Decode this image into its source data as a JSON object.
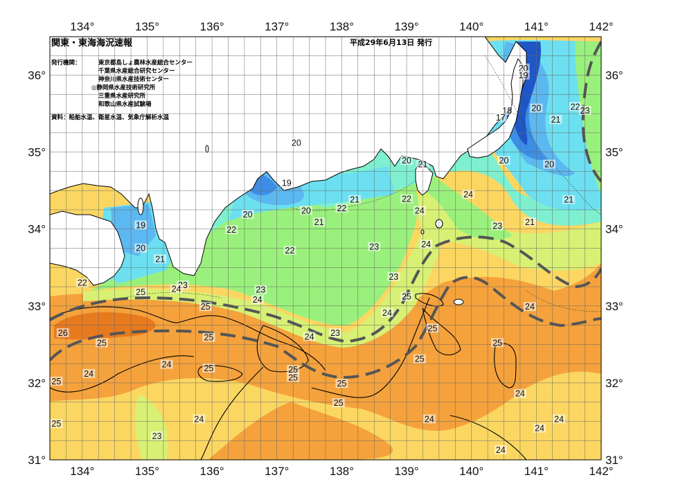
{
  "header": {
    "title": "関東・東海海況速報",
    "date": "平成29年6月13日 発行"
  },
  "issuers": {
    "label": "発行機関：",
    "items": [
      "東京都島しょ農林水産総合センター",
      "千葉県水産総合研究センター",
      "神奈川県水産技術センター",
      "◎静岡県水産技術研究所",
      "三重県水産研究所",
      "和歌山県水産試験場"
    ]
  },
  "sources": "資料：船舶水温、衛星水温、気象庁解析水温",
  "axes": {
    "lon_ticks": [
      "134°",
      "135°",
      "136°",
      "137°",
      "138°",
      "139°",
      "140°",
      "141°",
      "142°"
    ],
    "lat_ticks": [
      "36°",
      "35°",
      "34°",
      "33°",
      "32°",
      "31°"
    ],
    "lon_range": [
      133.5,
      142
    ],
    "lat_range": [
      31,
      36.5
    ]
  },
  "temperature_labels": [
    {
      "text": "20",
      "lon": 140.8,
      "lat": 36.07
    },
    {
      "text": "19",
      "lon": 140.8,
      "lat": 35.98
    },
    {
      "text": "18",
      "lon": 140.55,
      "lat": 35.52
    },
    {
      "text": "17",
      "lon": 140.45,
      "lat": 35.43
    },
    {
      "text": "20",
      "lon": 141.0,
      "lat": 35.55
    },
    {
      "text": "22",
      "lon": 141.6,
      "lat": 35.57
    },
    {
      "text": "23",
      "lon": 141.75,
      "lat": 35.52
    },
    {
      "text": "21",
      "lon": 141.3,
      "lat": 35.4
    },
    {
      "text": "20",
      "lon": 137.3,
      "lat": 35.1
    },
    {
      "text": "20",
      "lon": 139.0,
      "lat": 34.87
    },
    {
      "text": "21",
      "lon": 139.25,
      "lat": 34.82
    },
    {
      "text": "20",
      "lon": 140.5,
      "lat": 34.87
    },
    {
      "text": "20",
      "lon": 141.2,
      "lat": 34.82
    },
    {
      "text": "19",
      "lon": 137.15,
      "lat": 34.58
    },
    {
      "text": "24",
      "lon": 139.95,
      "lat": 34.43
    },
    {
      "text": "21",
      "lon": 138.2,
      "lat": 34.36
    },
    {
      "text": "22",
      "lon": 138.0,
      "lat": 34.25
    },
    {
      "text": "22",
      "lon": 139.0,
      "lat": 34.37
    },
    {
      "text": "24",
      "lon": 139.2,
      "lat": 34.22
    },
    {
      "text": "21",
      "lon": 141.5,
      "lat": 34.36
    },
    {
      "text": "20",
      "lon": 137.45,
      "lat": 34.22
    },
    {
      "text": "20",
      "lon": 136.55,
      "lat": 34.17
    },
    {
      "text": "21",
      "lon": 137.65,
      "lat": 34.07
    },
    {
      "text": "21",
      "lon": 140.9,
      "lat": 34.07
    },
    {
      "text": "23",
      "lon": 140.4,
      "lat": 34.02
    },
    {
      "text": "22",
      "lon": 136.3,
      "lat": 33.97
    },
    {
      "text": "19",
      "lon": 134.9,
      "lat": 34.03
    },
    {
      "text": "24",
      "lon": 139.3,
      "lat": 33.78
    },
    {
      "text": "23",
      "lon": 138.5,
      "lat": 33.75
    },
    {
      "text": "22",
      "lon": 137.2,
      "lat": 33.7
    },
    {
      "text": "20",
      "lon": 134.9,
      "lat": 33.73
    },
    {
      "text": "21",
      "lon": 135.2,
      "lat": 33.59
    },
    {
      "text": "23",
      "lon": 138.8,
      "lat": 33.36
    },
    {
      "text": "22",
      "lon": 134.0,
      "lat": 33.28
    },
    {
      "text": "23",
      "lon": 135.55,
      "lat": 33.25
    },
    {
      "text": "24",
      "lon": 135.45,
      "lat": 33.2
    },
    {
      "text": "25",
      "lon": 134.9,
      "lat": 33.16
    },
    {
      "text": "23",
      "lon": 136.75,
      "lat": 33.19
    },
    {
      "text": "24",
      "lon": 136.7,
      "lat": 33.06
    },
    {
      "text": "25",
      "lon": 139.0,
      "lat": 33.1
    },
    {
      "text": "25",
      "lon": 135.9,
      "lat": 32.97
    },
    {
      "text": "24",
      "lon": 140.9,
      "lat": 32.97
    },
    {
      "text": "24",
      "lon": 138.7,
      "lat": 32.89
    },
    {
      "text": "26",
      "lon": 133.7,
      "lat": 32.63
    },
    {
      "text": "25",
      "lon": 139.4,
      "lat": 32.69
    },
    {
      "text": "23",
      "lon": 137.9,
      "lat": 32.63
    },
    {
      "text": "24",
      "lon": 137.5,
      "lat": 32.58
    },
    {
      "text": "25",
      "lon": 135.95,
      "lat": 32.57
    },
    {
      "text": "25",
      "lon": 134.3,
      "lat": 32.5
    },
    {
      "text": "25",
      "lon": 140.4,
      "lat": 32.5
    },
    {
      "text": "24",
      "lon": 135.3,
      "lat": 32.22
    },
    {
      "text": "25",
      "lon": 139.2,
      "lat": 32.29
    },
    {
      "text": "25",
      "lon": 135.95,
      "lat": 32.17
    },
    {
      "text": "24",
      "lon": 134.1,
      "lat": 32.1
    },
    {
      "text": "25",
      "lon": 137.25,
      "lat": 32.15
    },
    {
      "text": "25",
      "lon": 137.25,
      "lat": 32.05
    },
    {
      "text": "25",
      "lon": 133.6,
      "lat": 32.0
    },
    {
      "text": "25",
      "lon": 138.0,
      "lat": 31.97
    },
    {
      "text": "24",
      "lon": 140.75,
      "lat": 31.84
    },
    {
      "text": "25",
      "lon": 137.95,
      "lat": 31.72
    },
    {
      "text": "24",
      "lon": 135.8,
      "lat": 31.51
    },
    {
      "text": "24",
      "lon": 139.35,
      "lat": 31.51
    },
    {
      "text": "24",
      "lon": 141.35,
      "lat": 31.51
    },
    {
      "text": "24",
      "lon": 141.05,
      "lat": 31.39
    },
    {
      "text": "25",
      "lon": 133.6,
      "lat": 31.45
    },
    {
      "text": "23",
      "lon": 135.15,
      "lat": 31.29
    },
    {
      "text": "24",
      "lon": 140.45,
      "lat": 31.11
    }
  ],
  "colors": {
    "t16": "#1e56c8",
    "t18": "#3c8ee6",
    "t19": "#5cb8f0",
    "t20": "#6ce0f0",
    "t21": "#7ef0d0",
    "t22": "#9af07c",
    "t23": "#d8f074",
    "t24": "#fbd762",
    "t25": "#f5a23c",
    "t26": "#e87a1e",
    "land": "#ffffff",
    "kuroshio_axis": "#555555"
  }
}
